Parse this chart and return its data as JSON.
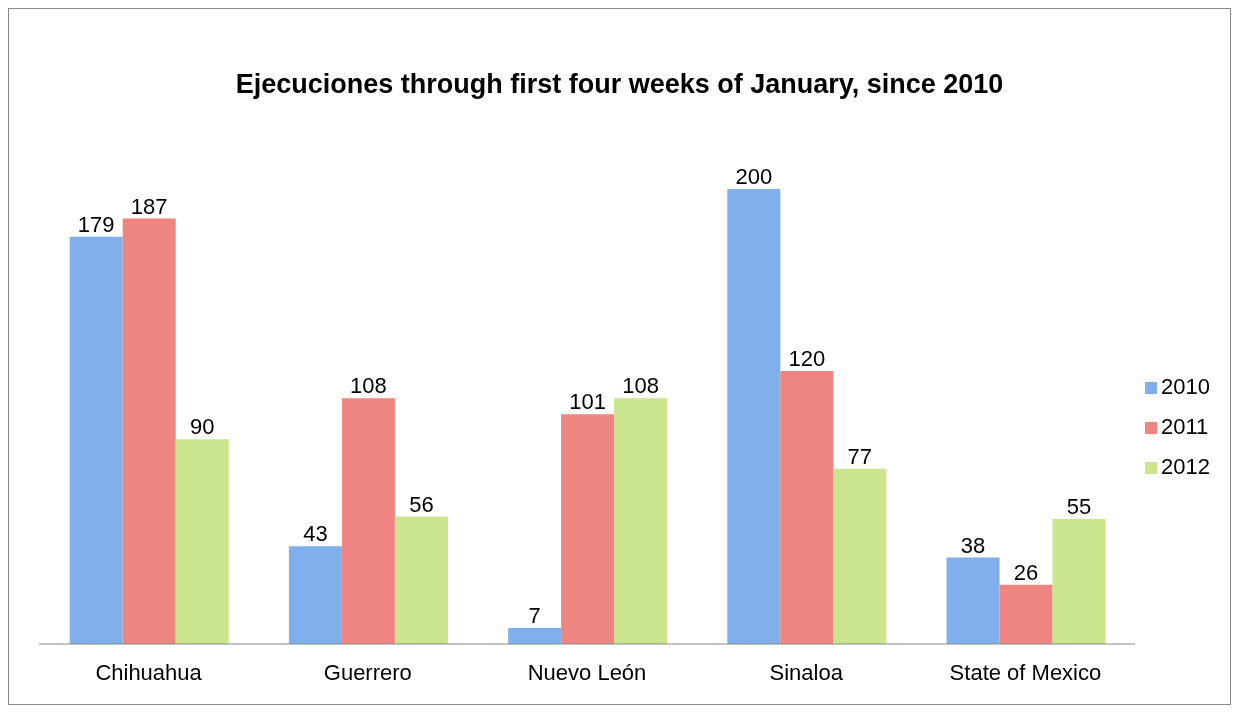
{
  "chart_data": {
    "type": "bar",
    "title": "Ejecuciones through first four weeks of January, since 2010",
    "categories": [
      "Chihuahua",
      "Guerrero",
      "Nuevo León",
      "Sinaloa",
      "State of Mexico"
    ],
    "series": [
      {
        "name": "2010",
        "color": "#7fb0ec",
        "values": [
          179,
          43,
          7,
          200,
          38
        ]
      },
      {
        "name": "2011",
        "color": "#ef8580",
        "values": [
          187,
          108,
          101,
          120,
          26
        ]
      },
      {
        "name": "2012",
        "color": "#cbe58e",
        "values": [
          90,
          56,
          108,
          77,
          55
        ]
      }
    ],
    "data_labels": true,
    "legend": "right",
    "grid": false
  }
}
